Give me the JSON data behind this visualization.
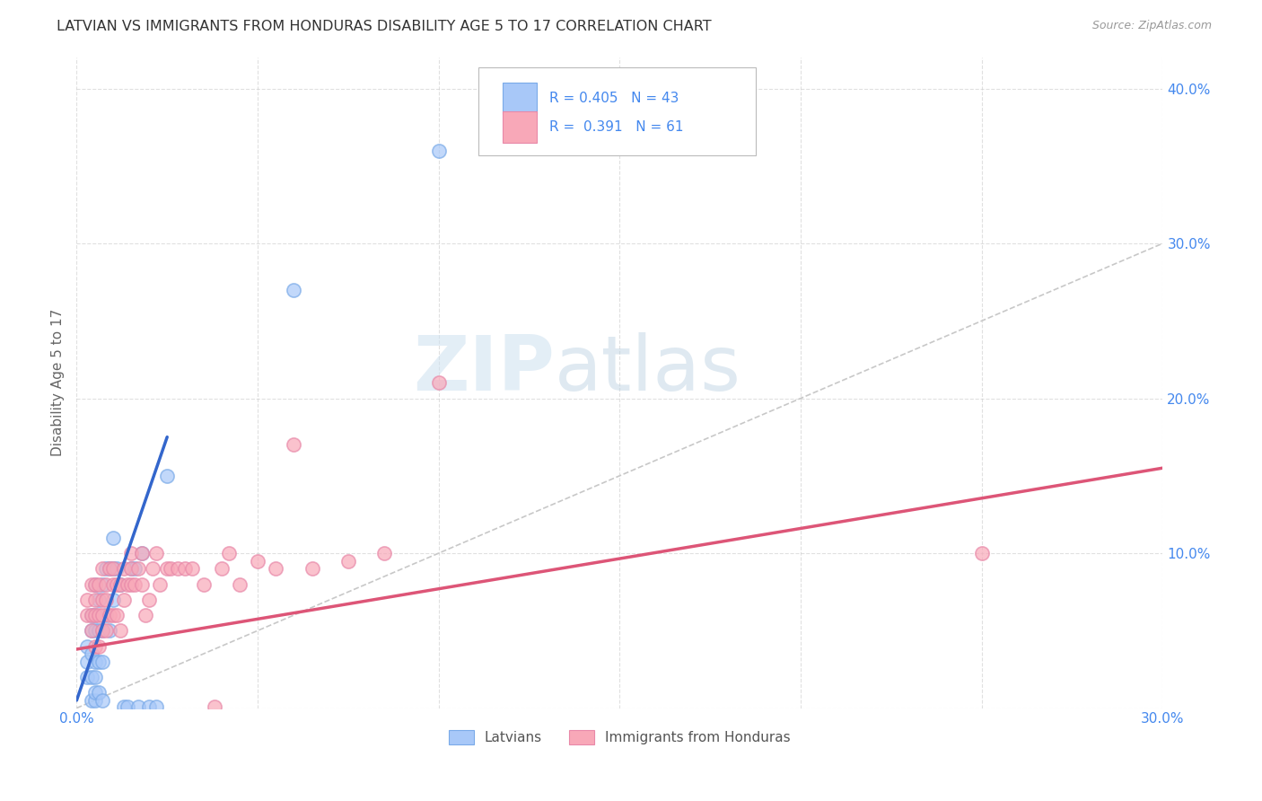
{
  "title": "LATVIAN VS IMMIGRANTS FROM HONDURAS DISABILITY AGE 5 TO 17 CORRELATION CHART",
  "source": "Source: ZipAtlas.com",
  "ylabel": "Disability Age 5 to 17",
  "xlim": [
    0.0,
    0.3
  ],
  "ylim": [
    0.0,
    0.42
  ],
  "xticks": [
    0.0,
    0.05,
    0.1,
    0.15,
    0.2,
    0.25,
    0.3
  ],
  "yticks": [
    0.0,
    0.1,
    0.2,
    0.3,
    0.4
  ],
  "latvian_color": "#a8c8f8",
  "honduras_color": "#f8a8b8",
  "latvian_edge_color": "#7aaae8",
  "honduras_edge_color": "#e888a8",
  "latvian_R": 0.405,
  "latvian_N": 43,
  "honduras_R": 0.391,
  "honduras_N": 61,
  "legend_label_1": "Latvians",
  "legend_label_2": "Immigrants from Honduras",
  "watermark_zip": "ZIP",
  "watermark_atlas": "atlas",
  "background_color": "#ffffff",
  "grid_color": "#cccccc",
  "latvian_line_color": "#3366cc",
  "honduras_line_color": "#dd5577",
  "diagonal_color": "#c8c8c8",
  "tick_label_color": "#4488ee",
  "title_color": "#333333",
  "source_color": "#999999",
  "ylabel_color": "#666666",
  "latvian_scatter_x": [
    0.003,
    0.003,
    0.003,
    0.004,
    0.004,
    0.004,
    0.004,
    0.004,
    0.005,
    0.005,
    0.005,
    0.005,
    0.005,
    0.005,
    0.005,
    0.006,
    0.006,
    0.006,
    0.006,
    0.007,
    0.007,
    0.007,
    0.007,
    0.008,
    0.008,
    0.009,
    0.009,
    0.01,
    0.01,
    0.01,
    0.011,
    0.012,
    0.013,
    0.014,
    0.015,
    0.016,
    0.017,
    0.018,
    0.02,
    0.022,
    0.025,
    0.06,
    0.1
  ],
  "latvian_scatter_y": [
    0.02,
    0.03,
    0.04,
    0.005,
    0.02,
    0.035,
    0.05,
    0.06,
    0.005,
    0.01,
    0.02,
    0.03,
    0.05,
    0.06,
    0.08,
    0.01,
    0.03,
    0.05,
    0.07,
    0.005,
    0.03,
    0.05,
    0.08,
    0.06,
    0.09,
    0.05,
    0.09,
    0.07,
    0.09,
    0.11,
    0.09,
    0.08,
    0.001,
    0.001,
    0.09,
    0.09,
    0.001,
    0.1,
    0.001,
    0.001,
    0.15,
    0.27,
    0.36
  ],
  "honduras_scatter_x": [
    0.003,
    0.003,
    0.004,
    0.004,
    0.004,
    0.005,
    0.005,
    0.005,
    0.005,
    0.006,
    0.006,
    0.006,
    0.007,
    0.007,
    0.007,
    0.007,
    0.008,
    0.008,
    0.008,
    0.009,
    0.009,
    0.01,
    0.01,
    0.01,
    0.011,
    0.011,
    0.012,
    0.012,
    0.013,
    0.013,
    0.014,
    0.015,
    0.015,
    0.015,
    0.016,
    0.017,
    0.018,
    0.018,
    0.019,
    0.02,
    0.021,
    0.022,
    0.023,
    0.025,
    0.026,
    0.028,
    0.03,
    0.032,
    0.035,
    0.038,
    0.04,
    0.042,
    0.045,
    0.05,
    0.055,
    0.06,
    0.065,
    0.075,
    0.085,
    0.1,
    0.25
  ],
  "honduras_scatter_y": [
    0.06,
    0.07,
    0.05,
    0.06,
    0.08,
    0.04,
    0.06,
    0.07,
    0.08,
    0.04,
    0.06,
    0.08,
    0.05,
    0.06,
    0.07,
    0.09,
    0.05,
    0.07,
    0.08,
    0.06,
    0.09,
    0.06,
    0.08,
    0.09,
    0.06,
    0.08,
    0.05,
    0.08,
    0.07,
    0.09,
    0.08,
    0.08,
    0.09,
    0.1,
    0.08,
    0.09,
    0.08,
    0.1,
    0.06,
    0.07,
    0.09,
    0.1,
    0.08,
    0.09,
    0.09,
    0.09,
    0.09,
    0.09,
    0.08,
    0.001,
    0.09,
    0.1,
    0.08,
    0.095,
    0.09,
    0.17,
    0.09,
    0.095,
    0.1,
    0.21,
    0.1
  ],
  "latvian_line_x": [
    0.0,
    0.025
  ],
  "latvian_line_y": [
    0.005,
    0.175
  ],
  "honduras_line_x": [
    0.0,
    0.3
  ],
  "honduras_line_y": [
    0.038,
    0.155
  ]
}
